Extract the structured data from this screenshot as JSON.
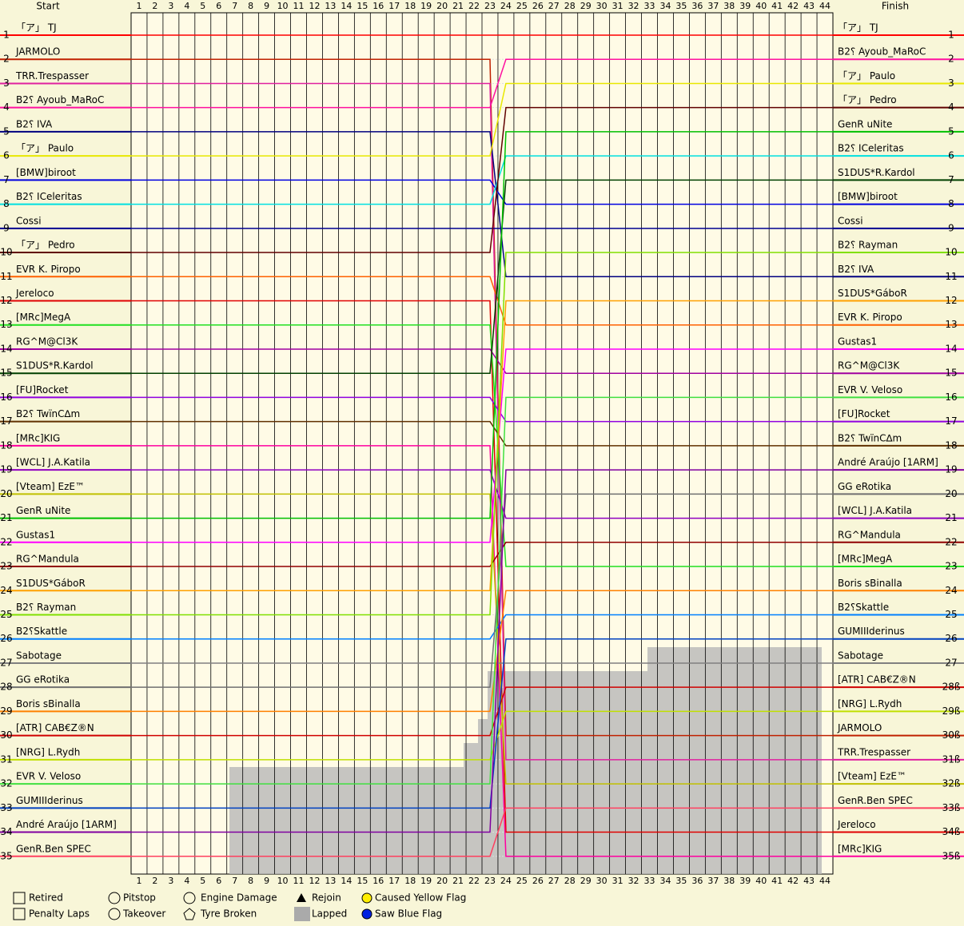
{
  "chart_data": {
    "type": "lapchart",
    "start_label": "Start",
    "finish_label": "Finish",
    "laps": [
      1,
      2,
      3,
      4,
      5,
      6,
      7,
      8,
      9,
      10,
      11,
      12,
      13,
      14,
      15,
      16,
      17,
      18,
      19,
      20,
      21,
      22,
      23,
      24,
      25,
      26,
      27,
      28,
      29,
      30,
      31,
      32,
      33,
      34,
      35,
      36,
      37,
      38,
      39,
      40,
      41,
      42,
      43,
      44
    ],
    "positions": [
      1,
      2,
      3,
      4,
      5,
      6,
      7,
      8,
      9,
      10,
      11,
      12,
      13,
      14,
      15,
      16,
      17,
      18,
      19,
      20,
      21,
      22,
      23,
      24,
      25,
      26,
      27,
      28,
      29,
      30,
      31,
      32,
      33,
      34,
      35
    ],
    "finish_position_labels": [
      1,
      2,
      3,
      4,
      5,
      6,
      7,
      8,
      9,
      10,
      11,
      12,
      13,
      14,
      15,
      16,
      17,
      18,
      19,
      20,
      21,
      22,
      23,
      24,
      25,
      26,
      27,
      "28ß",
      "29ß",
      "30ß",
      "31ß",
      "32ß",
      "33ß",
      "34ß",
      "35ß"
    ],
    "series": [
      {
        "name": "「ア」 TJ",
        "color": "#ff0000",
        "start": 1,
        "finish": 1
      },
      {
        "name": "JARMOLO",
        "color": "#c02000",
        "start": 2,
        "finish": 30
      },
      {
        "name": "TRR.Trespasser",
        "color": "#e020a0",
        "start": 3,
        "finish": 31
      },
      {
        "name": "B2⸮ Ayoub_MaRoC",
        "color": "#ff10a0",
        "start": 4,
        "finish": 2
      },
      {
        "name": "B2⸮ IVA",
        "color": "#000080",
        "start": 5,
        "finish": 11
      },
      {
        "name": "「ア」 Paulo",
        "color": "#e8e800",
        "start": 6,
        "finish": 3
      },
      {
        "name": "[BMW]biroot",
        "color": "#0000e0",
        "start": 7,
        "finish": 8
      },
      {
        "name": "B2⸮ ICeleritas",
        "color": "#00e0e0",
        "start": 8,
        "finish": 6
      },
      {
        "name": "Cossi",
        "color": "#000090",
        "start": 9,
        "finish": 9
      },
      {
        "name": "「ア」 Pedro",
        "color": "#600000",
        "start": 10,
        "finish": 4
      },
      {
        "name": "EVR K. Piropo",
        "color": "#ff6000",
        "start": 11,
        "finish": 13
      },
      {
        "name": "Jereloco",
        "color": "#e00000",
        "start": 12,
        "finish": 34
      },
      {
        "name": "[MRc]MegA",
        "color": "#20e020",
        "start": 13,
        "finish": 23
      },
      {
        "name": "RG^M@Cl3K",
        "color": "#a000a0",
        "start": 14,
        "finish": 15
      },
      {
        "name": "S1DUS*R.Kardol",
        "color": "#004000",
        "start": 15,
        "finish": 7
      },
      {
        "name": "[FU]Rocket",
        "color": "#9000e0",
        "start": 16,
        "finish": 17
      },
      {
        "name": "B2⸮ TwïnC∆m",
        "color": "#603000",
        "start": 17,
        "finish": 18
      },
      {
        "name": "[MRc]KIG",
        "color": "#ff00a0",
        "start": 18,
        "finish": 35
      },
      {
        "name": "[WCL] J.A.Katila",
        "color": "#9000c0",
        "start": 19,
        "finish": 21
      },
      {
        "name": "[Vteam] EzE™",
        "color": "#c0c000",
        "start": 20,
        "finish": 32
      },
      {
        "name": "GenR uNite",
        "color": "#00c000",
        "start": 21,
        "finish": 5
      },
      {
        "name": "Gustas1",
        "color": "#ff00ff",
        "start": 22,
        "finish": 14
      },
      {
        "name": "RG^Mandula",
        "color": "#900000",
        "start": 23,
        "finish": 22
      },
      {
        "name": "S1DUS*GáboR",
        "color": "#ffa000",
        "start": 24,
        "finish": 12
      },
      {
        "name": "B2⸮ Rayman",
        "color": "#80e000",
        "start": 25,
        "finish": 10
      },
      {
        "name": "B2⸮Skattle",
        "color": "#0080ff",
        "start": 26,
        "finish": 25
      },
      {
        "name": "Sabotage",
        "color": "#808080",
        "start": 27,
        "finish": 27
      },
      {
        "name": "GG eRotika",
        "color": "#707070",
        "start": 28,
        "finish": 20
      },
      {
        "name": "Boris sBinalla",
        "color": "#ff8000",
        "start": 29,
        "finish": 24
      },
      {
        "name": "[ATR] CAB€Z®N",
        "color": "#d00000",
        "start": 30,
        "finish": 28
      },
      {
        "name": "[NRG] L.Rydh",
        "color": "#c0e000",
        "start": 31,
        "finish": 29
      },
      {
        "name": "EVR V. Veloso",
        "color": "#40e040",
        "start": 32,
        "finish": 16
      },
      {
        "name": "GUMIIIderinus",
        "color": "#0040c0",
        "start": 33,
        "finish": 26
      },
      {
        "name": "André Araújo [1ARM]",
        "color": "#8000a0",
        "start": 34,
        "finish": 19
      },
      {
        "name": "GenR.Ben SPEC",
        "color": "#ff4060",
        "start": 35,
        "finish": 33
      }
    ],
    "legend": [
      "Retired",
      "Penalty Laps",
      "Pitstop",
      "Takeover",
      "Engine Damage",
      "Tyre Broken",
      "Rejoin",
      "Lapped",
      "Caused Yellow Flag",
      "Saw Blue Flag"
    ]
  }
}
